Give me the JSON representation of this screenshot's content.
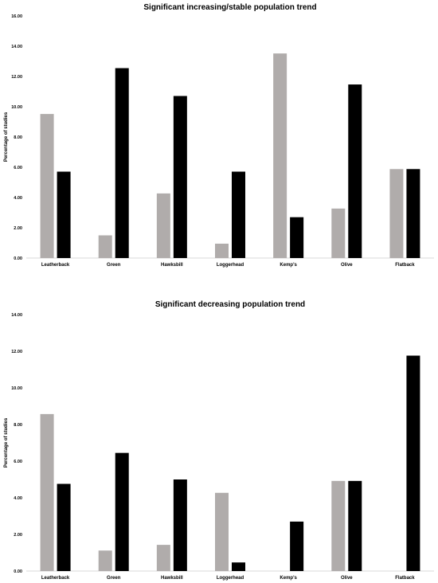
{
  "chart_data": [
    {
      "type": "bar",
      "title": "Significant increasing/stable population trend",
      "ylabel": "Percentage of studies",
      "xlabel": "",
      "ylim": [
        0,
        16
      ],
      "yticks": [
        "0.00",
        "2.00",
        "4.00",
        "6.00",
        "8.00",
        "10.00",
        "12.00",
        "14.00",
        "16.00"
      ],
      "grid": false,
      "legend": "none",
      "categories": [
        "Leatherback",
        "Green",
        "Hawksbill",
        "Loggerhead",
        "Kemp's",
        "Olive",
        "Flatback"
      ],
      "series": [
        {
          "color": "#b0acab",
          "values": [
            9.52,
            1.5,
            4.27,
            0.95,
            13.52,
            3.27,
            5.88
          ]
        },
        {
          "color": "#000000",
          "values": [
            5.71,
            12.55,
            10.71,
            5.71,
            2.7,
            11.47,
            5.88
          ]
        }
      ]
    },
    {
      "type": "bar",
      "title": "Significant decreasing population trend",
      "ylabel": "Percentage of studies",
      "xlabel": "",
      "ylim": [
        0,
        14
      ],
      "yticks": [
        "0.00",
        "2.00",
        "4.00",
        "6.00",
        "8.00",
        "10.00",
        "12.00",
        "14.00"
      ],
      "grid": false,
      "legend": "none",
      "categories": [
        "Leatherback",
        "Green",
        "Hawksbill",
        "Loggerhead",
        "Kemp's",
        "Olive",
        "Flatback"
      ],
      "series": [
        {
          "color": "#b0acab",
          "values": [
            8.57,
            1.12,
            1.43,
            4.27,
            0,
            4.92,
            0
          ]
        },
        {
          "color": "#000000",
          "values": [
            4.76,
            6.45,
            5.0,
            0.47,
            2.7,
            4.92,
            11.76
          ]
        }
      ]
    }
  ]
}
